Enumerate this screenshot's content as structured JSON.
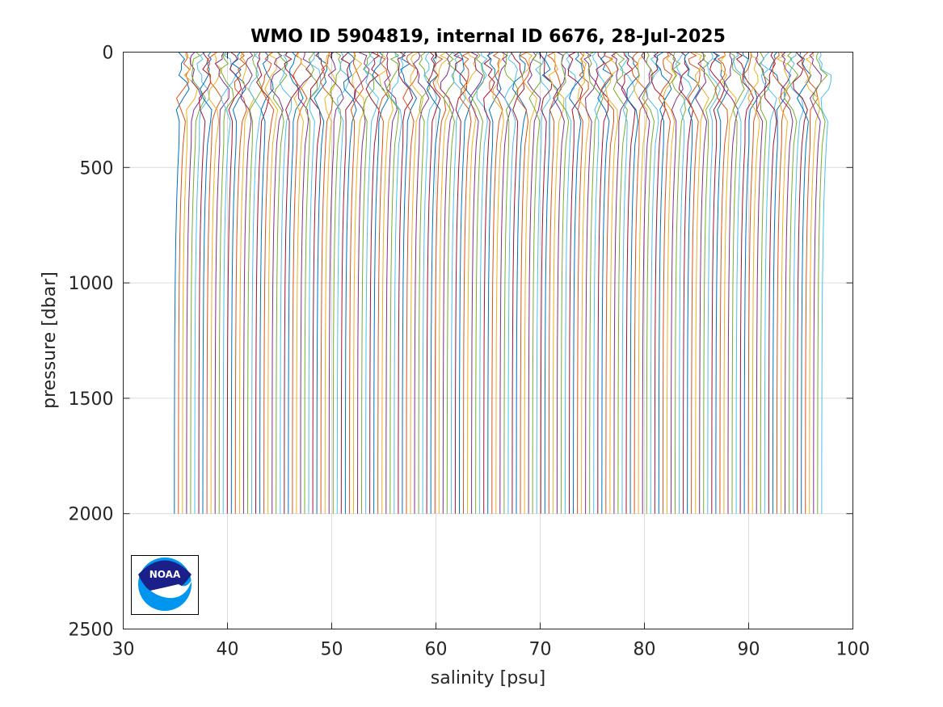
{
  "chart_data": {
    "type": "line",
    "title": "WMO ID 5904819, internal ID 6676, 28-Jul-2025",
    "xlabel": "salinity [psu]",
    "ylabel": "pressure [dbar]",
    "xlim": [
      30,
      100
    ],
    "ylim": [
      0,
      2500
    ],
    "y_reversed": true,
    "grid": true,
    "xticks": [
      30,
      40,
      50,
      60,
      70,
      80,
      90,
      100
    ],
    "xtick_labels": [
      "30",
      "40",
      "50",
      "60",
      "70",
      "80",
      "90",
      "100"
    ],
    "yticks": [
      0,
      500,
      1000,
      1500,
      2000,
      2500
    ],
    "ytick_labels": [
      "0",
      "500",
      "1000",
      "1500",
      "2000",
      "2500"
    ],
    "series_colors": [
      "#0072bd",
      "#d95319",
      "#edb120",
      "#7e2f8e",
      "#77ac30",
      "#4dbeee",
      "#a2142f"
    ],
    "profiles": {
      "count": 160,
      "surface_first": 35.5,
      "surface_last": 97.0,
      "deep_first": 34.9,
      "deep_last": 97.0,
      "max_pressure": 2000
    },
    "logo": {
      "name": "NOAA logo",
      "text": "NOAA"
    }
  }
}
